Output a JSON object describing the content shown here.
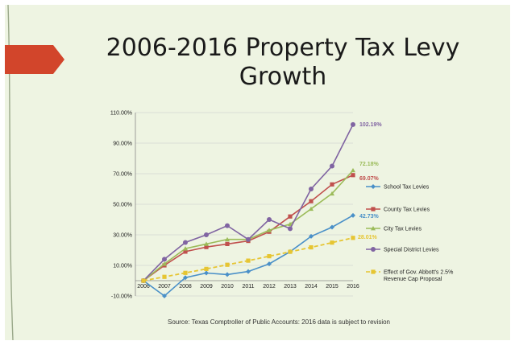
{
  "slide": {
    "title": "2006-2016 Property Tax Levy Growth",
    "source": "Source: Texas Comptroller of Public Accounts: 2016 data is subject to revision"
  },
  "colors": {
    "background": "#eef4e2",
    "accent_arrow": "#d2452b",
    "grid": "#c8c8c8"
  },
  "chart_data": {
    "type": "line",
    "x": [
      2006,
      2007,
      2008,
      2009,
      2010,
      2011,
      2012,
      2013,
      2014,
      2015,
      2016
    ],
    "ylim": [
      -10,
      110
    ],
    "yticks": [
      "-10.00%",
      "10.00%",
      "30.00%",
      "50.00%",
      "70.00%",
      "90.00%",
      "110.00%"
    ],
    "ytick_values": [
      -10,
      10,
      30,
      50,
      70,
      90,
      110
    ],
    "grid": true,
    "legend_position": "right",
    "series": [
      {
        "name": "School Tax Levies",
        "color": "#4a90c8",
        "marker": "diamond",
        "dashed": false,
        "values": [
          0,
          -10,
          2,
          5,
          4,
          6,
          11,
          19,
          29,
          35,
          42.73
        ],
        "end_label": "42.73%"
      },
      {
        "name": "County Tax Levies",
        "color": "#c0504d",
        "marker": "square",
        "dashed": false,
        "values": [
          0,
          10,
          19,
          22,
          24,
          26,
          32,
          42,
          52,
          63,
          69.07
        ],
        "end_label": "69.07%"
      },
      {
        "name": "City Tax Levies",
        "color": "#9bbb59",
        "marker": "triangle",
        "dashed": false,
        "values": [
          0,
          11,
          21,
          24,
          27,
          27,
          33,
          37,
          47,
          57,
          72.18
        ],
        "end_label": "72.18%"
      },
      {
        "name": "Special District Levies",
        "color": "#8064a2",
        "marker": "circle",
        "dashed": false,
        "values": [
          0,
          14,
          25,
          30,
          36,
          27,
          40,
          34,
          60,
          75,
          102.19
        ],
        "end_label": "102.19%"
      },
      {
        "name": "Effect of Gov. Abbott's 2.5% Revenue Cap Proposal",
        "color": "#e6c532",
        "marker": "square",
        "dashed": true,
        "values": [
          0,
          2.5,
          5.1,
          7.7,
          10.4,
          13.1,
          16,
          18.9,
          21.8,
          24.9,
          28.01
        ],
        "end_label": "28.01%"
      }
    ]
  }
}
